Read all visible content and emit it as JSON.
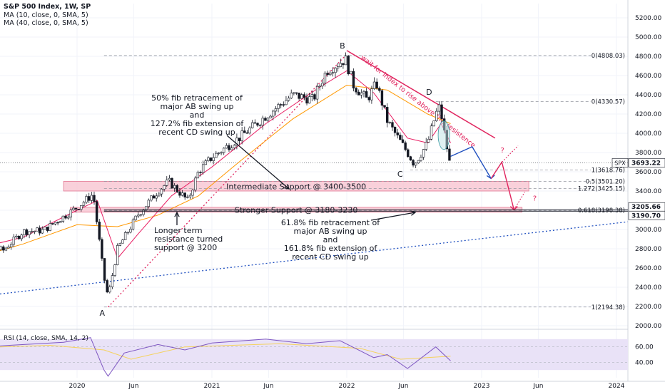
{
  "header": {
    "symbol": "S&P 500 Index, 1W, SP",
    "ma1": "MA (10, close, 0, SMA, 5)",
    "ma2": "MA (40, close, 0, SMA, 5)"
  },
  "colors": {
    "candle": "#131722",
    "ma_fast": "#e91e63",
    "ma_slow": "#ff9800",
    "resistance": "#e0245e",
    "dotted_blue": "#1f4fbf",
    "dotted_red": "#e0245e",
    "zone_fill": "#f8c8d4",
    "zone_edge": "#e06080",
    "rsi_line": "#7e57c2",
    "rsi_sma": "#f5d25c",
    "rsi_band": "#e9e2f7",
    "arrow_blue": "#1f4fbf",
    "arrow_red": "#e0245e"
  },
  "chart_data": {
    "type": "candlestick",
    "title": "S&P 500 Index, 1W, SP",
    "ylim": [
      2000,
      5300
    ],
    "y_ticks": [
      2000,
      2200,
      2400,
      2600,
      2800,
      3000,
      3200,
      3400,
      3600,
      3800,
      4000,
      4200,
      4400,
      4600,
      4800,
      5000,
      5200
    ],
    "x_ticks": [
      "2020",
      "Jun",
      "2021",
      "Jun",
      "2022",
      "Jun",
      "2023",
      "Jun",
      "2024"
    ],
    "price_path": [
      {
        "t": 2019.05,
        "v": 2600
      },
      {
        "t": 2019.25,
        "v": 2900
      },
      {
        "t": 2019.45,
        "v": 2780
      },
      {
        "t": 2019.6,
        "v": 2980
      },
      {
        "t": 2019.75,
        "v": 2990
      },
      {
        "t": 2020.0,
        "v": 3230
      },
      {
        "t": 2020.12,
        "v": 3370
      },
      {
        "t": 2020.2,
        "v": 2500
      },
      {
        "t": 2020.23,
        "v": 2300
      },
      {
        "t": 2020.3,
        "v": 2800
      },
      {
        "t": 2020.45,
        "v": 3150
      },
      {
        "t": 2020.6,
        "v": 3400
      },
      {
        "t": 2020.68,
        "v": 3500
      },
      {
        "t": 2020.82,
        "v": 3300
      },
      {
        "t": 2020.9,
        "v": 3600
      },
      {
        "t": 2021.0,
        "v": 3750
      },
      {
        "t": 2021.2,
        "v": 3950
      },
      {
        "t": 2021.4,
        "v": 4180
      },
      {
        "t": 2021.6,
        "v": 4400
      },
      {
        "t": 2021.75,
        "v": 4350
      },
      {
        "t": 2021.85,
        "v": 4650
      },
      {
        "t": 2021.99,
        "v": 4770
      },
      {
        "t": 2022.05,
        "v": 4500
      },
      {
        "t": 2022.15,
        "v": 4350
      },
      {
        "t": 2022.22,
        "v": 4520
      },
      {
        "t": 2022.3,
        "v": 4130
      },
      {
        "t": 2022.38,
        "v": 3950
      },
      {
        "t": 2022.45,
        "v": 3800
      },
      {
        "t": 2022.5,
        "v": 3680
      },
      {
        "t": 2022.6,
        "v": 3900
      },
      {
        "t": 2022.66,
        "v": 4200
      },
      {
        "t": 2022.69,
        "v": 4280
      },
      {
        "t": 2022.73,
        "v": 3950
      },
      {
        "t": 2022.76,
        "v": 3700
      },
      {
        "t": 2022.77,
        "v": 3693.22
      }
    ],
    "ma_fast_path": [
      {
        "t": 2019.1,
        "v": 2750
      },
      {
        "t": 2019.6,
        "v": 2920
      },
      {
        "t": 2020.0,
        "v": 3200
      },
      {
        "t": 2020.15,
        "v": 3300
      },
      {
        "t": 2020.3,
        "v": 2700
      },
      {
        "t": 2020.45,
        "v": 2950
      },
      {
        "t": 2020.7,
        "v": 3350
      },
      {
        "t": 2021.0,
        "v": 3650
      },
      {
        "t": 2021.4,
        "v": 4100
      },
      {
        "t": 2021.8,
        "v": 4480
      },
      {
        "t": 2022.0,
        "v": 4650
      },
      {
        "t": 2022.2,
        "v": 4420
      },
      {
        "t": 2022.45,
        "v": 3950
      },
      {
        "t": 2022.6,
        "v": 3900
      },
      {
        "t": 2022.7,
        "v": 4100
      },
      {
        "t": 2022.77,
        "v": 3900
      }
    ],
    "ma_slow_path": [
      {
        "t": 2019.1,
        "v": 2650
      },
      {
        "t": 2019.6,
        "v": 2850
      },
      {
        "t": 2020.0,
        "v": 3050
      },
      {
        "t": 2020.3,
        "v": 3030
      },
      {
        "t": 2020.6,
        "v": 3150
      },
      {
        "t": 2020.9,
        "v": 3350
      },
      {
        "t": 2021.2,
        "v": 3700
      },
      {
        "t": 2021.6,
        "v": 4150
      },
      {
        "t": 2022.0,
        "v": 4500
      },
      {
        "t": 2022.3,
        "v": 4450
      },
      {
        "t": 2022.6,
        "v": 4200
      },
      {
        "t": 2022.77,
        "v": 4100
      }
    ],
    "pivots": [
      {
        "label": "A",
        "t": 2020.23,
        "v": 2194.38
      },
      {
        "label": "B",
        "t": 2021.99,
        "v": 4808.03
      },
      {
        "label": "C",
        "t": 2022.47,
        "v": 3636.87
      },
      {
        "label": "D",
        "t": 2022.63,
        "v": 4325.28
      }
    ],
    "fib_levels": [
      {
        "label": "0(4808.03)",
        "v": 4808.03,
        "t0": 2020.2
      },
      {
        "label": "0(4330.57)",
        "v": 4330.57,
        "t0": 2022.66
      },
      {
        "label": "1(3618.76)",
        "v": 3618.76,
        "t0": 2022.47
      },
      {
        "label": "0.5(3501.20)",
        "v": 3501.2,
        "t0": 2020.2
      },
      {
        "label": "1.272(3425.15)",
        "v": 3425.15,
        "t0": 2020.2
      },
      {
        "label": "0.618(3198.38)",
        "v": 3198.38,
        "t0": 2020.2
      },
      {
        "label": "1(2194.38)",
        "v": 2194.38,
        "t0": 2020.2
      }
    ],
    "zones": [
      {
        "label": "Intermediate Support @ 3400-3500",
        "low": 3400,
        "high": 3500,
        "t0": 2019.9,
        "t1": 2023.35
      },
      {
        "label": "Stronger Support @ 3180-3230",
        "low": 3180,
        "high": 3230,
        "t0": 2019.95,
        "t1": 2023.3
      }
    ],
    "price_tags": [
      {
        "label": "3693.22",
        "v": 3693.22,
        "name": "SPX"
      },
      {
        "label": "3205.66",
        "v": 3205.66,
        "name": ""
      },
      {
        "label": "3190.70",
        "v": 3190.7,
        "name": ""
      }
    ],
    "rsi": {
      "label": "RSI (14, close, SMA, 14, 2)",
      "ylim": [
        20,
        80
      ],
      "y_ticks": [
        40,
        60
      ],
      "band": [
        30,
        70
      ],
      "path": [
        {
          "t": 2019.05,
          "v": 57
        },
        {
          "t": 2019.5,
          "v": 62
        },
        {
          "t": 2019.9,
          "v": 66
        },
        {
          "t": 2020.1,
          "v": 72
        },
        {
          "t": 2020.2,
          "v": 30
        },
        {
          "t": 2020.23,
          "v": 22
        },
        {
          "t": 2020.35,
          "v": 52
        },
        {
          "t": 2020.6,
          "v": 63
        },
        {
          "t": 2020.8,
          "v": 56
        },
        {
          "t": 2021.0,
          "v": 65
        },
        {
          "t": 2021.4,
          "v": 70
        },
        {
          "t": 2021.7,
          "v": 64
        },
        {
          "t": 2021.95,
          "v": 68
        },
        {
          "t": 2022.2,
          "v": 46
        },
        {
          "t": 2022.3,
          "v": 50
        },
        {
          "t": 2022.45,
          "v": 32
        },
        {
          "t": 2022.66,
          "v": 60
        },
        {
          "t": 2022.77,
          "v": 42
        }
      ],
      "sma_path": [
        {
          "t": 2019.1,
          "v": 58
        },
        {
          "t": 2019.8,
          "v": 62
        },
        {
          "t": 2020.2,
          "v": 56
        },
        {
          "t": 2020.4,
          "v": 44
        },
        {
          "t": 2020.8,
          "v": 60
        },
        {
          "t": 2021.5,
          "v": 64
        },
        {
          "t": 2022.1,
          "v": 58
        },
        {
          "t": 2022.4,
          "v": 44
        },
        {
          "t": 2022.77,
          "v": 48
        }
      ]
    }
  },
  "annotations": {
    "fib50": [
      "50% fib retracement of",
      "major AB swing up",
      "and",
      "127.2% fib extension of",
      "recent CD swing up"
    ],
    "fib618": [
      "61.8% fib retracement of",
      "major AB swing up",
      "and",
      "161.8% fib extension of",
      "recent CD swing up"
    ],
    "longer_term": [
      "Longer term",
      "resistance turned",
      "support @ 3200"
    ],
    "wait_text": "wait for index to rise above this resistence",
    "question": "?"
  }
}
